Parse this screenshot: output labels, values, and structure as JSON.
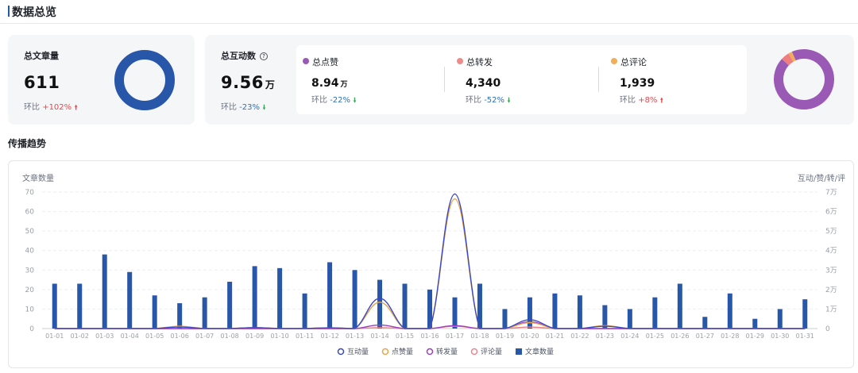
{
  "header": {
    "title": "数据总览"
  },
  "articles": {
    "label": "总文章量",
    "value": "611",
    "mom_label": "环比",
    "mom_value": "+102%"
  },
  "interactions": {
    "label": "总互动数",
    "help_icon": "question-circle-icon",
    "value": "9.56",
    "unit": "万",
    "mom_label": "环比",
    "mom_value": "-23%",
    "items": [
      {
        "label": "总点赞",
        "value": "8.94",
        "unit": "万",
        "mom_label": "环比",
        "mom_value": "-22%",
        "trend": "down",
        "color": "#9b59b6"
      },
      {
        "label": "总转发",
        "value": "4,340",
        "unit": "",
        "mom_label": "环比",
        "mom_value": "-52%",
        "trend": "down",
        "color": "#ef8b8b"
      },
      {
        "label": "总评论",
        "value": "1,939",
        "unit": "",
        "mom_label": "环比",
        "mom_value": "+8%",
        "trend": "up",
        "color": "#f0ad5a"
      }
    ]
  },
  "colors": {
    "primary": "#2856a8",
    "purple": "#9b59b6",
    "pink": "#ef7e7e",
    "orange": "#f0ad5a",
    "up": "#e5484d",
    "down": "#2f6fb7",
    "green": "#3aa757"
  },
  "trend": {
    "title": "传播趋势"
  },
  "chart_data": {
    "type": "bar",
    "left_axis_label": "文章数量",
    "right_axis_label": "互动/赞/转/评",
    "left_ylim": [
      0,
      70
    ],
    "left_ticks": [
      "0",
      "10",
      "20",
      "30",
      "40",
      "50",
      "60",
      "70"
    ],
    "right_ticks": [
      "0",
      "1万",
      "2万",
      "3万",
      "4万",
      "5万",
      "6万",
      "7万"
    ],
    "categories": [
      "01-01",
      "01-02",
      "01-03",
      "01-04",
      "01-05",
      "01-06",
      "01-07",
      "01-08",
      "01-09",
      "01-10",
      "01-11",
      "01-12",
      "01-13",
      "01-14",
      "01-15",
      "01-16",
      "01-17",
      "01-18",
      "01-19",
      "01-20",
      "01-21",
      "01-22",
      "01-23",
      "01-24",
      "01-25",
      "01-26",
      "01-27",
      "01-28",
      "01-29",
      "01-30",
      "01-31"
    ],
    "bars": {
      "name": "文章数量",
      "color": "#2856a8",
      "values": [
        23,
        23,
        38,
        29,
        17,
        13,
        16,
        24,
        32,
        31,
        18,
        34,
        30,
        25,
        23,
        20,
        16,
        23,
        10,
        16,
        18,
        17,
        12,
        10,
        16,
        23,
        6,
        18,
        5,
        10,
        15
      ]
    },
    "series": [
      {
        "name": "互动量",
        "color": "#3b48c4",
        "values": [
          0,
          0,
          0,
          0,
          0,
          0.08,
          0,
          0,
          0.05,
          0,
          0,
          0.04,
          0,
          1.55,
          0,
          0,
          6.9,
          0,
          0,
          0.45,
          0,
          0,
          0.12,
          0,
          0,
          0,
          0,
          0,
          0,
          0,
          0
        ]
      },
      {
        "name": "点赞量",
        "color": "#e7a54a",
        "values": [
          0,
          0,
          0,
          0,
          0,
          0.12,
          0,
          0,
          0.05,
          0,
          0,
          0.04,
          0,
          1.35,
          0,
          0,
          6.65,
          0,
          0,
          0.3,
          0,
          0,
          0.15,
          0,
          0,
          0,
          0,
          0,
          0,
          0,
          0
        ]
      },
      {
        "name": "转发量",
        "color": "#9b3fbf",
        "values": [
          0,
          0,
          0,
          0,
          0,
          0,
          0,
          0,
          0,
          0,
          0,
          0,
          0,
          0.18,
          0,
          0,
          0.15,
          0,
          0,
          0.35,
          0,
          0,
          0,
          0,
          0,
          0,
          0,
          0,
          0,
          0,
          0
        ]
      },
      {
        "name": "评论量",
        "color": "#e9868a",
        "values": [
          0,
          0,
          0,
          0,
          0,
          0,
          0,
          0,
          0,
          0,
          0,
          0,
          0,
          0.05,
          0,
          0,
          0.12,
          0,
          0,
          0.08,
          0,
          0,
          0,
          0,
          0,
          0,
          0,
          0,
          0,
          0,
          0
        ]
      }
    ],
    "right_ylim": [
      0,
      7
    ],
    "legend_position": "bottom",
    "grid": true
  },
  "donut_interactions": {
    "segments": [
      {
        "name": "总点赞",
        "value": 89400,
        "color": "#9b59b6"
      },
      {
        "name": "总转发",
        "value": 4340,
        "color": "#ef7e7e"
      },
      {
        "name": "总评论",
        "value": 1939,
        "color": "#f0ad5a"
      }
    ]
  }
}
